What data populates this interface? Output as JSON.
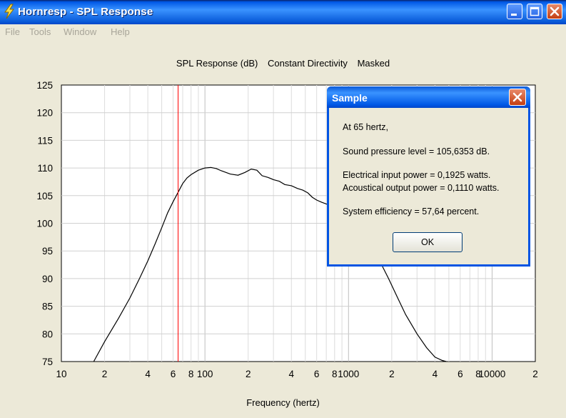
{
  "window": {
    "title": "Hornresp - SPL Response",
    "icon": "lightning-icon"
  },
  "menu": [
    "File",
    "Tools",
    "Window",
    "Help"
  ],
  "chart_header": [
    "SPL Response (dB)",
    "Constant Directivity",
    "Masked"
  ],
  "chart_data": {
    "type": "line",
    "title": "SPL Response (dB)   Constant Directivity   Masked",
    "xlabel": "Frequency (hertz)",
    "ylabel": "",
    "x_scale": "log",
    "xlim": [
      10,
      20000
    ],
    "ylim": [
      75,
      125
    ],
    "y_ticks": [
      125,
      120,
      115,
      110,
      105,
      100,
      95,
      90,
      85,
      80,
      75
    ],
    "x_tick_labels": [
      "10",
      "2",
      "4",
      "6",
      "8",
      "100",
      "2",
      "4",
      "6",
      "8",
      "1000",
      "2",
      "4",
      "6",
      "8",
      "10000",
      "2"
    ],
    "marker_frequency": 65,
    "series": [
      {
        "x": [
          16.8,
          20,
          25,
          30,
          35,
          40,
          45,
          50,
          55,
          60,
          65,
          70,
          75,
          80,
          90,
          100,
          110,
          120,
          130,
          150,
          170,
          190,
          210,
          230,
          250,
          275,
          300,
          330,
          360,
          400,
          440,
          480,
          520,
          560,
          600,
          650,
          700,
          750,
          800,
          900,
          1000,
          1150,
          1300,
          1500,
          1700,
          1900,
          2200,
          2500,
          3000,
          3500,
          4000,
          4500,
          4800
        ],
        "y": [
          75,
          78.6,
          82.8,
          86.5,
          90,
          93.2,
          96.3,
          99.2,
          101.9,
          103.9,
          105.6,
          107.2,
          108.2,
          108.8,
          109.6,
          110.0,
          110.1,
          109.9,
          109.5,
          108.9,
          108.7,
          109.2,
          109.8,
          109.6,
          108.6,
          108.3,
          107.9,
          107.6,
          107.0,
          106.8,
          106.3,
          106.0,
          105.5,
          104.7,
          104.2,
          103.8,
          103.5,
          103.3,
          103.0,
          101.5,
          100.0,
          98.5,
          97.0,
          95.0,
          92.5,
          90.0,
          86.5,
          83.5,
          80.0,
          77.5,
          75.8,
          75.2,
          75
        ]
      }
    ]
  },
  "dialog": {
    "title": "Sample",
    "lines": [
      "At 65 hertz,",
      "Sound pressure level = 105,6353 dB.",
      "Electrical input power = 0,1925 watts.",
      "Acoustical output power = 0,1110 watts.",
      "System efficiency = 57,64 percent."
    ],
    "ok_label": "OK"
  },
  "colors": {
    "marker": "#FF0000",
    "curve": "#000000",
    "grid": "#D0D0D0"
  }
}
